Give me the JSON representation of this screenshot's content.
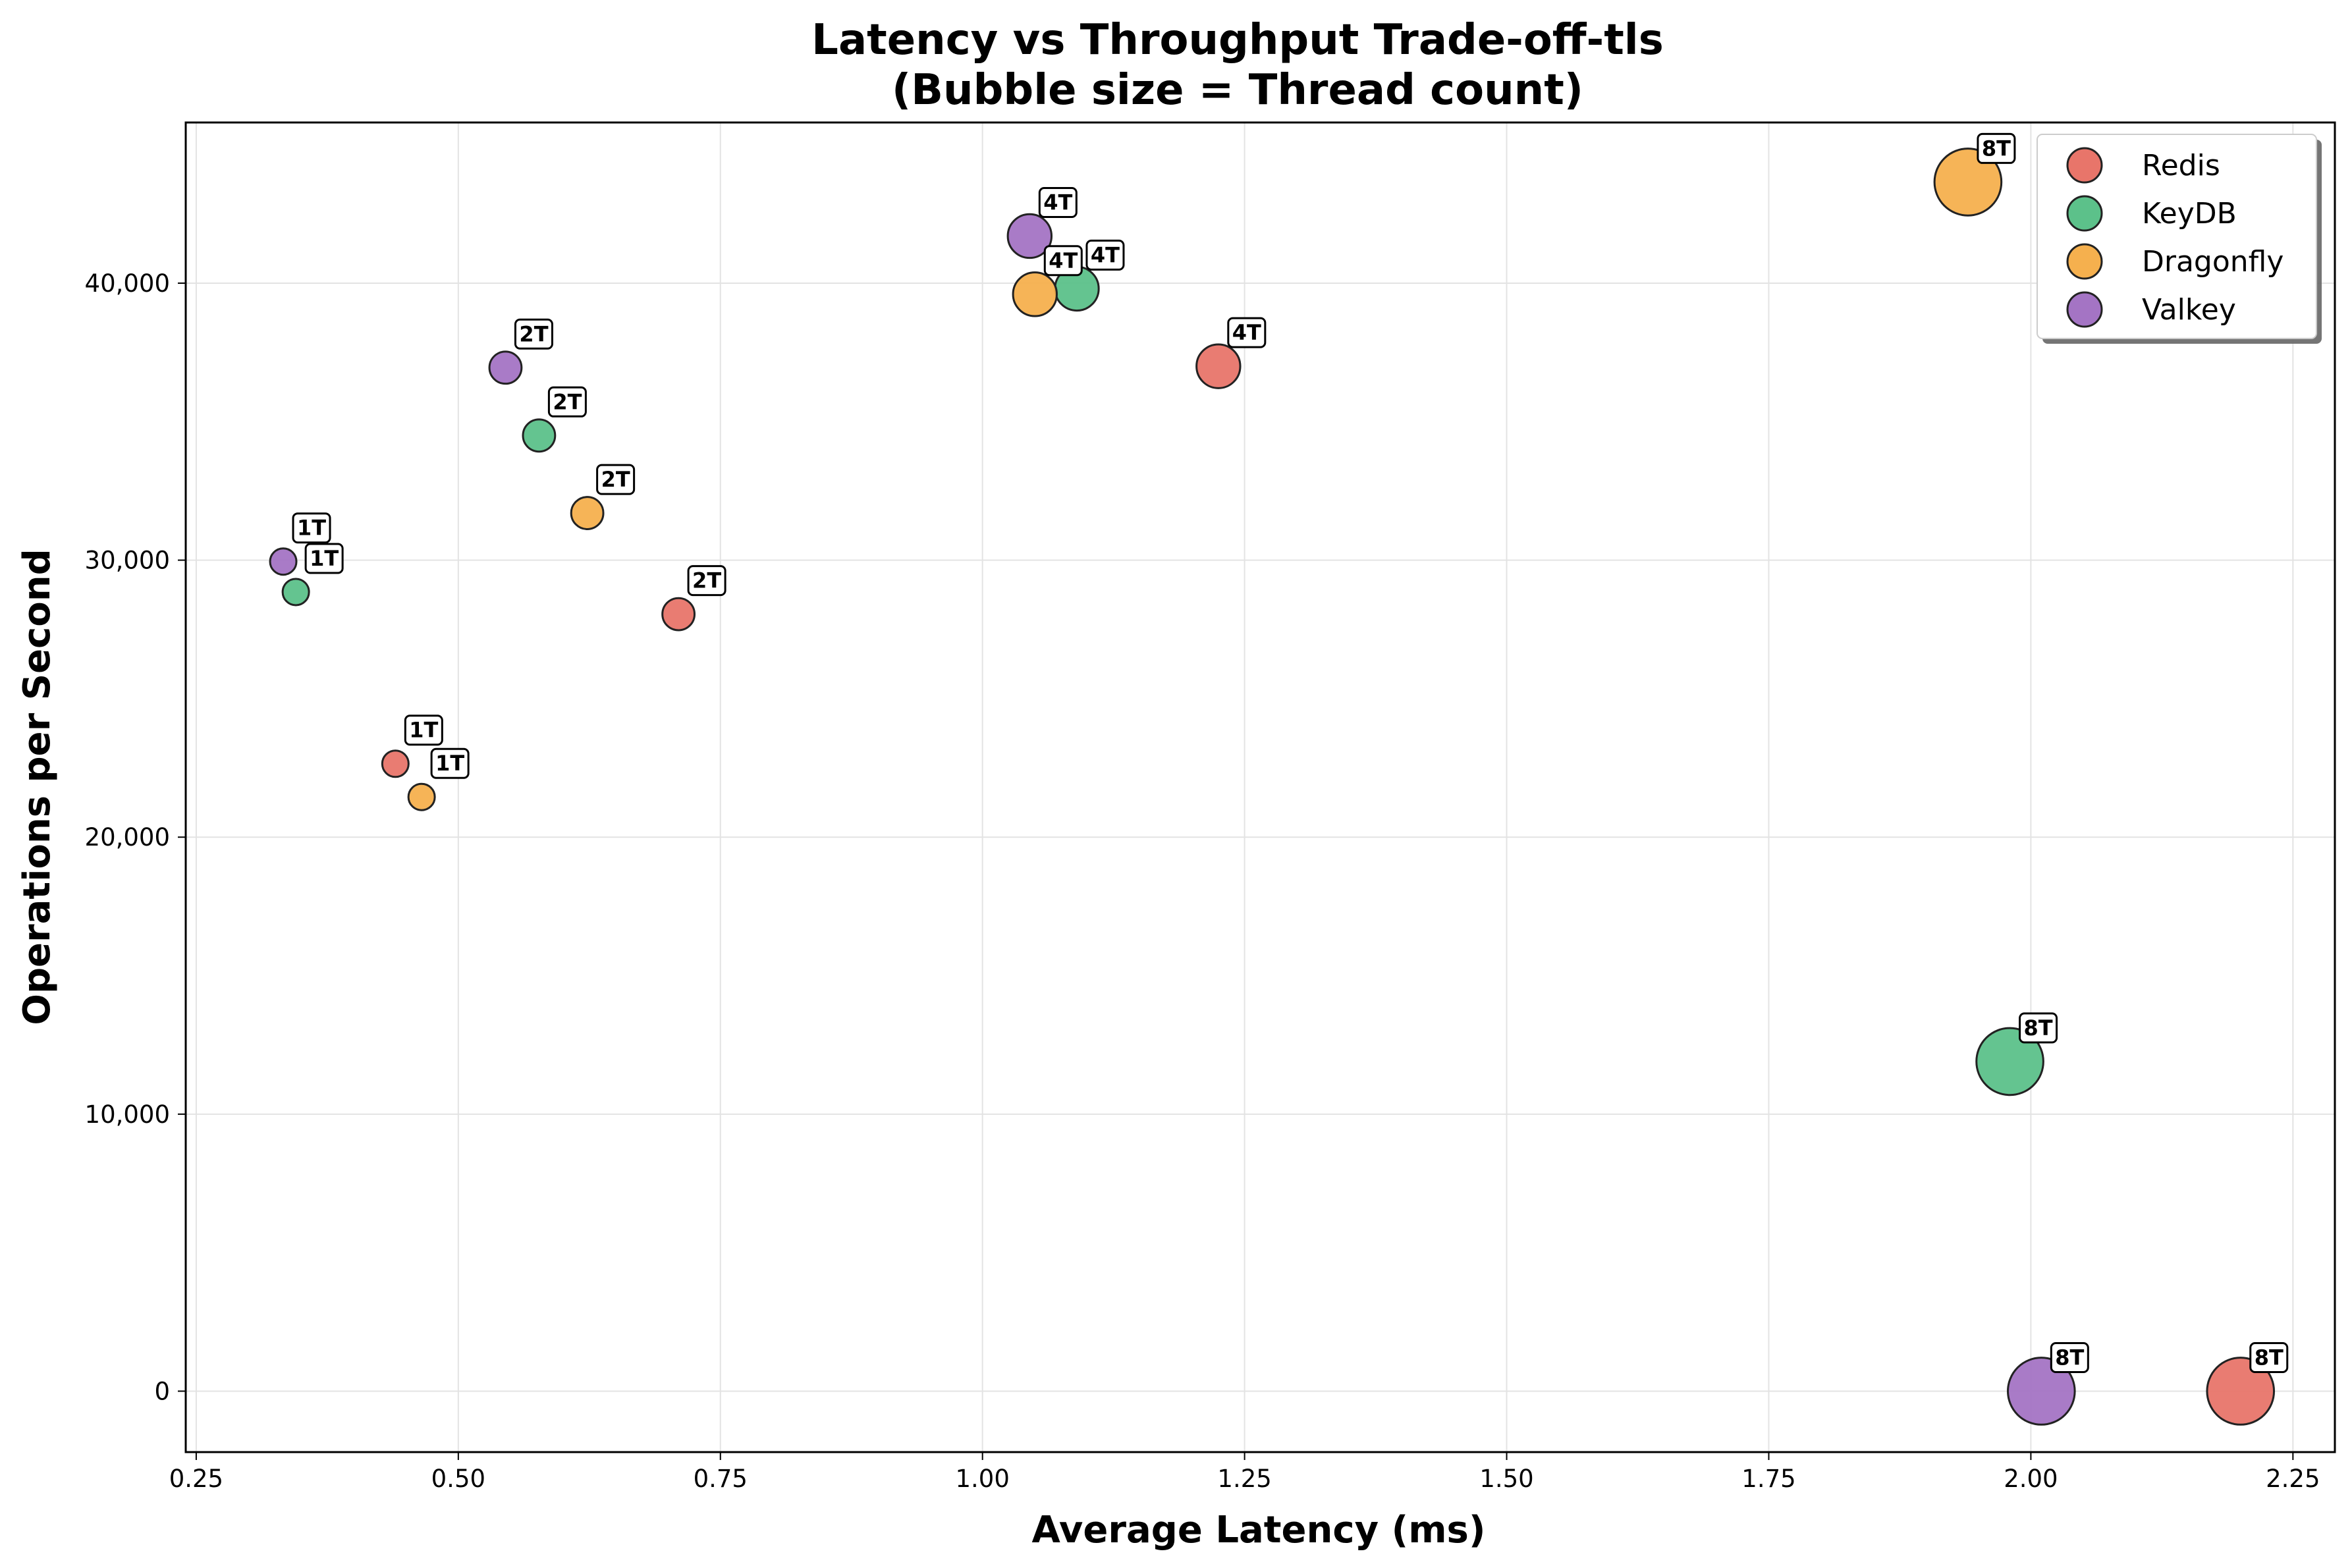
{
  "chart_data": {
    "type": "scatter",
    "title": "Latency vs Throughput Trade-off-tls",
    "subtitle": "(Bubble size = Thread count)",
    "xlabel": "Average Latency (ms)",
    "ylabel": "Operations per Second",
    "xlim": [
      0.24,
      2.29
    ],
    "ylim": [
      -2200,
      45800
    ],
    "xticks": [
      0.25,
      0.5,
      0.75,
      1.0,
      1.25,
      1.5,
      1.75,
      2.0,
      2.25
    ],
    "xtick_labels": [
      "0.25",
      "0.50",
      "0.75",
      "1.00",
      "1.25",
      "1.50",
      "1.75",
      "2.00",
      "2.25"
    ],
    "yticks": [
      0,
      10000,
      20000,
      30000,
      40000
    ],
    "ytick_labels": [
      "0",
      "10,000",
      "20,000",
      "30,000",
      "40,000"
    ],
    "grid": true,
    "legend_position": "top-right",
    "bubble_size_encodes": "threads",
    "series": [
      {
        "name": "Redis",
        "color": "#e8756a",
        "points": [
          {
            "x": 0.44,
            "y": 22650,
            "threads": 1,
            "label": "1T"
          },
          {
            "x": 0.71,
            "y": 28050,
            "threads": 2,
            "label": "2T"
          },
          {
            "x": 1.225,
            "y": 37000,
            "threads": 4,
            "label": "4T"
          },
          {
            "x": 2.2,
            "y": 0,
            "threads": 8,
            "label": "8T"
          }
        ]
      },
      {
        "name": "KeyDB",
        "color": "#5cc18a",
        "points": [
          {
            "x": 0.345,
            "y": 28850,
            "threads": 1,
            "label": "1T"
          },
          {
            "x": 0.577,
            "y": 34500,
            "threads": 2,
            "label": "2T"
          },
          {
            "x": 1.09,
            "y": 39800,
            "threads": 4,
            "label": "4T"
          },
          {
            "x": 1.98,
            "y": 11900,
            "threads": 8,
            "label": "8T"
          }
        ]
      },
      {
        "name": "Dragonfly",
        "color": "#f5b04e",
        "points": [
          {
            "x": 0.465,
            "y": 21450,
            "threads": 1,
            "label": "1T"
          },
          {
            "x": 0.623,
            "y": 31700,
            "threads": 2,
            "label": "2T"
          },
          {
            "x": 1.05,
            "y": 39600,
            "threads": 4,
            "label": "4T"
          },
          {
            "x": 1.94,
            "y": 43650,
            "threads": 8,
            "label": "8T"
          }
        ]
      },
      {
        "name": "Valkey",
        "color": "#a474c4",
        "points": [
          {
            "x": 0.333,
            "y": 29950,
            "threads": 1,
            "label": "1T"
          },
          {
            "x": 0.545,
            "y": 36950,
            "threads": 2,
            "label": "2T"
          },
          {
            "x": 1.045,
            "y": 41700,
            "threads": 4,
            "label": "4T"
          },
          {
            "x": 2.01,
            "y": 0,
            "threads": 8,
            "label": "8T"
          }
        ]
      }
    ]
  }
}
